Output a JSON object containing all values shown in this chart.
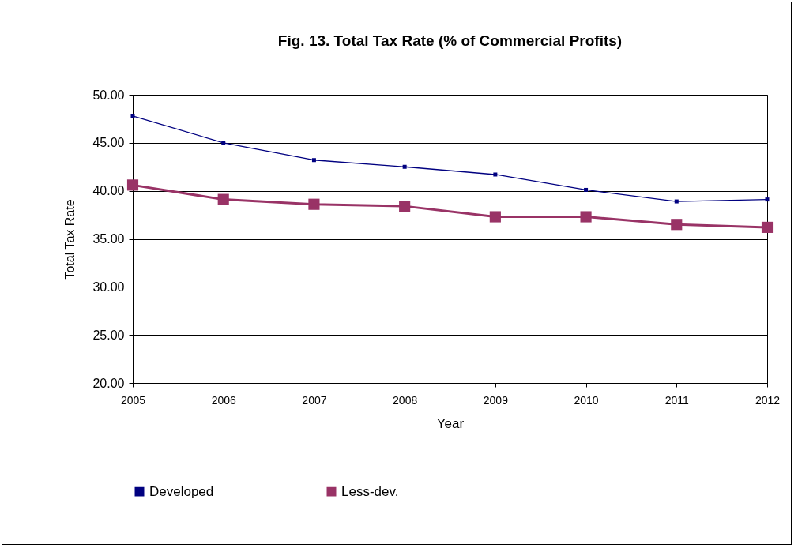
{
  "chart_data": {
    "type": "line",
    "title": "Fig. 13. Total Tax Rate (% of Commercial Profits)",
    "xlabel": "Year",
    "ylabel": "Total Tax Rate",
    "categories": [
      "2005",
      "2006",
      "2007",
      "2008",
      "2009",
      "2010",
      "2011",
      "2012"
    ],
    "series": [
      {
        "name": "Developed",
        "color": "#000080",
        "values": [
          47.8,
          45.0,
          43.2,
          42.5,
          41.7,
          40.1,
          38.9,
          39.1
        ]
      },
      {
        "name": "Less-dev.",
        "color": "#993366",
        "values": [
          40.6,
          39.1,
          38.6,
          38.4,
          37.3,
          37.3,
          36.5,
          36.2
        ]
      }
    ],
    "ylim": [
      20,
      50
    ],
    "yticks": [
      {
        "value": 20,
        "label": "20.00"
      },
      {
        "value": 25,
        "label": "25.00"
      },
      {
        "value": 30,
        "label": "30.00"
      },
      {
        "value": 35,
        "label": "35.00"
      },
      {
        "value": 40,
        "label": "40.00"
      },
      {
        "value": 45,
        "label": "45.00"
      },
      {
        "value": 50,
        "label": "50.00"
      }
    ],
    "grid": "y",
    "legend": "bottom",
    "marker": "square",
    "line_style": "solid"
  }
}
